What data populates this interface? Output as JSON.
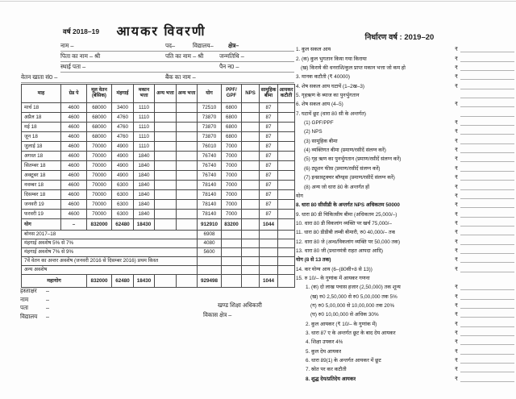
{
  "page": {
    "year_label": "वर्ष 2018–19",
    "title": "आयकर विवरणी",
    "assessment_year": "निर्धारण वर्ष : 2019–20",
    "rupee_symbol": "₹"
  },
  "header_fields": {
    "name": "नाम –",
    "post": "पद–",
    "school": "विद्यालय–",
    "region": "क्षेत्र–",
    "father": "पिता का नाम – श्री",
    "husband": "पति का नाम – श्री",
    "dob": "जन्मतिथि –",
    "address": "स्थाई पता –",
    "pan": "पैन न0 –",
    "salary_account": "वेतन खाता सं0 –",
    "bank": "बैंक का नाम –"
  },
  "salary_table": {
    "columns": [
      "माह",
      "ग्रेड पे",
      "मूल वेतन (बेसिक)",
      "मंहगाई",
      "मकान भत्ता",
      "अन्य भत्ता",
      "अन्य भत्ता",
      "योग",
      "PPF/ GPF",
      "NPS",
      "सामूहिक बीमा",
      "आयकर कटौती"
    ],
    "rows": [
      {
        "month": "मार्च 18",
        "grade_pay": "4600",
        "basic": "68000",
        "da": "3400",
        "hra": "1110",
        "other1": "",
        "other2": "",
        "total": "72510",
        "ppf_gpf": "6800",
        "nps": "",
        "gis": "87",
        "it_deduction": ""
      },
      {
        "month": "अप्रैल 18",
        "grade_pay": "4600",
        "basic": "68000",
        "da": "4760",
        "hra": "1110",
        "other1": "",
        "other2": "",
        "total": "73870",
        "ppf_gpf": "6800",
        "nps": "",
        "gis": "87",
        "it_deduction": ""
      },
      {
        "month": "मई 18",
        "grade_pay": "4600",
        "basic": "68000",
        "da": "4760",
        "hra": "1110",
        "other1": "",
        "other2": "",
        "total": "73870",
        "ppf_gpf": "6800",
        "nps": "",
        "gis": "87",
        "it_deduction": ""
      },
      {
        "month": "जून 18",
        "grade_pay": "4600",
        "basic": "68000",
        "da": "4760",
        "hra": "1110",
        "other1": "",
        "other2": "",
        "total": "73870",
        "ppf_gpf": "6800",
        "nps": "",
        "gis": "87",
        "it_deduction": ""
      },
      {
        "month": "जुलाई 18",
        "grade_pay": "4600",
        "basic": "70000",
        "da": "4900",
        "hra": "1110",
        "other1": "",
        "other2": "",
        "total": "76010",
        "ppf_gpf": "7000",
        "nps": "",
        "gis": "87",
        "it_deduction": ""
      },
      {
        "month": "अगस्त 18",
        "grade_pay": "4600",
        "basic": "70000",
        "da": "4900",
        "hra": "1840",
        "other1": "",
        "other2": "",
        "total": "76740",
        "ppf_gpf": "7000",
        "nps": "",
        "gis": "87",
        "it_deduction": ""
      },
      {
        "month": "सितम्बर 18",
        "grade_pay": "4600",
        "basic": "70000",
        "da": "4900",
        "hra": "1840",
        "other1": "",
        "other2": "",
        "total": "76740",
        "ppf_gpf": "7000",
        "nps": "",
        "gis": "87",
        "it_deduction": ""
      },
      {
        "month": "अक्टूबर 18",
        "grade_pay": "4600",
        "basic": "70000",
        "da": "4900",
        "hra": "1840",
        "other1": "",
        "other2": "",
        "total": "76740",
        "ppf_gpf": "7000",
        "nps": "",
        "gis": "87",
        "it_deduction": ""
      },
      {
        "month": "नवम्बर 18",
        "grade_pay": "4600",
        "basic": "70000",
        "da": "6300",
        "hra": "1840",
        "other1": "",
        "other2": "",
        "total": "78140",
        "ppf_gpf": "7000",
        "nps": "",
        "gis": "87",
        "it_deduction": ""
      },
      {
        "month": "दिसम्बर 18",
        "grade_pay": "4600",
        "basic": "70000",
        "da": "6300",
        "hra": "1840",
        "other1": "",
        "other2": "",
        "total": "78140",
        "ppf_gpf": "7000",
        "nps": "",
        "gis": "87",
        "it_deduction": ""
      },
      {
        "month": "जनवरी 19",
        "grade_pay": "4600",
        "basic": "70000",
        "da": "6300",
        "hra": "1840",
        "other1": "",
        "other2": "",
        "total": "78140",
        "ppf_gpf": "7000",
        "nps": "",
        "gis": "87",
        "it_deduction": ""
      },
      {
        "month": "फरवरी 19",
        "grade_pay": "4600",
        "basic": "70000",
        "da": "6300",
        "hra": "1840",
        "other1": "",
        "other2": "",
        "total": "78140",
        "ppf_gpf": "7000",
        "nps": "",
        "gis": "87",
        "it_deduction": ""
      }
    ],
    "total_row": {
      "month": "योग",
      "grade_pay": "–",
      "basic": "832000",
      "da": "62480",
      "hra": "18430",
      "other1": "",
      "other2": "",
      "total": "912910",
      "ppf_gpf": "83200",
      "nps": "",
      "gis": "1044",
      "it_deduction": ""
    },
    "extra_rows": [
      {
        "label": "बोनस 2017–18",
        "total": "6908"
      },
      {
        "label": "मंहगाई अवशेष 5% से 7%",
        "total": "4080"
      },
      {
        "label": "मंहगाई अवशेष 7% से 9%",
        "total": "5600"
      },
      {
        "label": "7वें वेतन का अन्तर अवशेष (जनवरी 2016 से दिसम्बर 2016) प्रथम किस्त",
        "total": ""
      },
      {
        "label": "अन्य अवशेष",
        "total": ""
      }
    ],
    "grand_total_row": {
      "label": "महायोग",
      "basic": "832000",
      "da": "62480",
      "hra": "18430",
      "other1": "",
      "other2": "",
      "total": "929498",
      "ppf_gpf": "",
      "nps": "",
      "gis": "1044",
      "it_deduction": ""
    }
  },
  "footer": {
    "dash": "–",
    "sign_label": "हस्ताक्षर",
    "name_label": "नाम",
    "address_label": "पता",
    "school_label": "विद्यालय",
    "officer": "खण्ड शिक्षा अधिकारी",
    "block": "विकास क्षेत्र –"
  },
  "right_panel": {
    "rows": [
      {
        "label": "1. कुल सकल आय",
        "rupee": true,
        "indent": 0
      },
      {
        "label": "2. (क) कुल भुगतान किया गया किराया",
        "rupee": true,
        "indent": 0
      },
      {
        "label": "(ख) किराये की धनराशि/कुल प्राप्त मकान भत्ता जो कम हो",
        "rupee": true,
        "indent": 6
      },
      {
        "label": "3. मानक कटौती (₹ 40000)",
        "rupee": true,
        "indent": 0
      },
      {
        "label": "4. शेष सकल आय घटायें (1–2ख–3)",
        "rupee": true,
        "indent": 0
      },
      {
        "label": "5. गृहऋण के ब्याज का पुनर्भुगतान",
        "rupee": false,
        "indent": 0
      },
      {
        "label": "6. शेष सकल आय (4–5)",
        "rupee": true,
        "indent": 0
      },
      {
        "label": "7. घटायें छूट (धारा 80 सी के अन्तर्गत)",
        "rupee": false,
        "indent": 0
      },
      {
        "label": "(1) GPF/PPF",
        "rupee": true,
        "indent": 10
      },
      {
        "label": "(2) NPS",
        "rupee": true,
        "indent": 10
      },
      {
        "label": "(3) सामूहिक बीमा",
        "rupee": true,
        "indent": 10
      },
      {
        "label": "(4) व्यक्तिगत बीमा (प्रमाण/रसीदें संलग्न करें)",
        "rupee": true,
        "indent": 10
      },
      {
        "label": "(5) गृह ऋण का पुनर्भुगतान (प्रमाण/रसीदें संलग्न करें)",
        "rupee": true,
        "indent": 10
      },
      {
        "label": "(6) ट्यूशन फीस (प्रमाण/रसीदें संलग्न करें)",
        "rupee": true,
        "indent": 10
      },
      {
        "label": "(7) इन्फ्रास्ट्रक्चर बॉण्ड्स (प्रमाण/रसीदें संलग्न करें)",
        "rupee": true,
        "indent": 10
      },
      {
        "label": "(8) अन्य जो धारा 80 के अन्तर्गत हों",
        "rupee": true,
        "indent": 10
      },
      {
        "label": "योग",
        "rupee": true,
        "indent": 0
      },
      {
        "label": "8. धारा 80 सीसीडी के अन्तर्गत NPS अधिकतम 50000",
        "rupee": true,
        "indent": 0,
        "bold": true
      },
      {
        "label": "9. धारा 80 डी चिकित्सीय बीमा (अधिकतम 25,000/–)",
        "rupee": true,
        "indent": 0
      },
      {
        "label": "10. धारा 80 डी विकलांग व्यक्ति पर खर्च 75,000/–",
        "rupee": true,
        "indent": 0
      },
      {
        "label": "11. धारा 80 डीडीबी लम्बी बीमारी, रु0 40,000/– तक",
        "rupee": true,
        "indent": 0
      },
      {
        "label": "12. धारा 80 जे (अन्ध/विकलांग व्यक्ति पर 50,000 तक)",
        "rupee": true,
        "indent": 0
      },
      {
        "label": "13. धारा 80 जी (प्रधानमंत्री राहत आपदा आदि)",
        "rupee": true,
        "indent": 0
      },
      {
        "label": "योग (8 से 13 तक)",
        "rupee": true,
        "indent": 0,
        "bold": true
      },
      {
        "label": "14. कर योग्य आय (6–(80सी+8 से 13))",
        "rupee": true,
        "indent": 0
      },
      {
        "label": "15. रु 10/– के गुणांक में आयकर गणना",
        "rupee": false,
        "indent": 0,
        "line": false
      },
      {
        "label": "1. (क) दो लाख पचास हजार (2,50,000) तक शून्य",
        "rupee": true,
        "indent": 12
      },
      {
        "label": "(ख) रु0 2,50,000 से रु0 5,00,000 तक 5%",
        "rupee": true,
        "indent": 18
      },
      {
        "label": "(ग) रु0 5,00,000 से 10,00,000 तक 20%",
        "rupee": true,
        "indent": 18
      },
      {
        "label": "(घ) रु0 10,00,000 से अधिक 30%",
        "rupee": true,
        "indent": 18
      },
      {
        "label": "2. कुल आयकर (₹ 10/– के गुणांक में)",
        "rupee": true,
        "indent": 12
      },
      {
        "label": "3. धारा 87 ए के अन्तर्गत छूट के बाद देय आयकर",
        "rupee": true,
        "indent": 12
      },
      {
        "label": "4. शिक्षा उपकर 4%",
        "rupee": true,
        "indent": 12
      },
      {
        "label": "5. कुल देय आयकर",
        "rupee": true,
        "indent": 12
      },
      {
        "label": "6. धारा 89(1) के अन्तर्गत आयकर में छूट",
        "rupee": true,
        "indent": 12
      },
      {
        "label": "7. स्रोत पर कर कटौती",
        "rupee": true,
        "indent": 12
      },
      {
        "label": "8. शुद्ध देय/प्रतिदेय आयकर",
        "rupee": true,
        "indent": 12,
        "bold": true
      }
    ]
  }
}
